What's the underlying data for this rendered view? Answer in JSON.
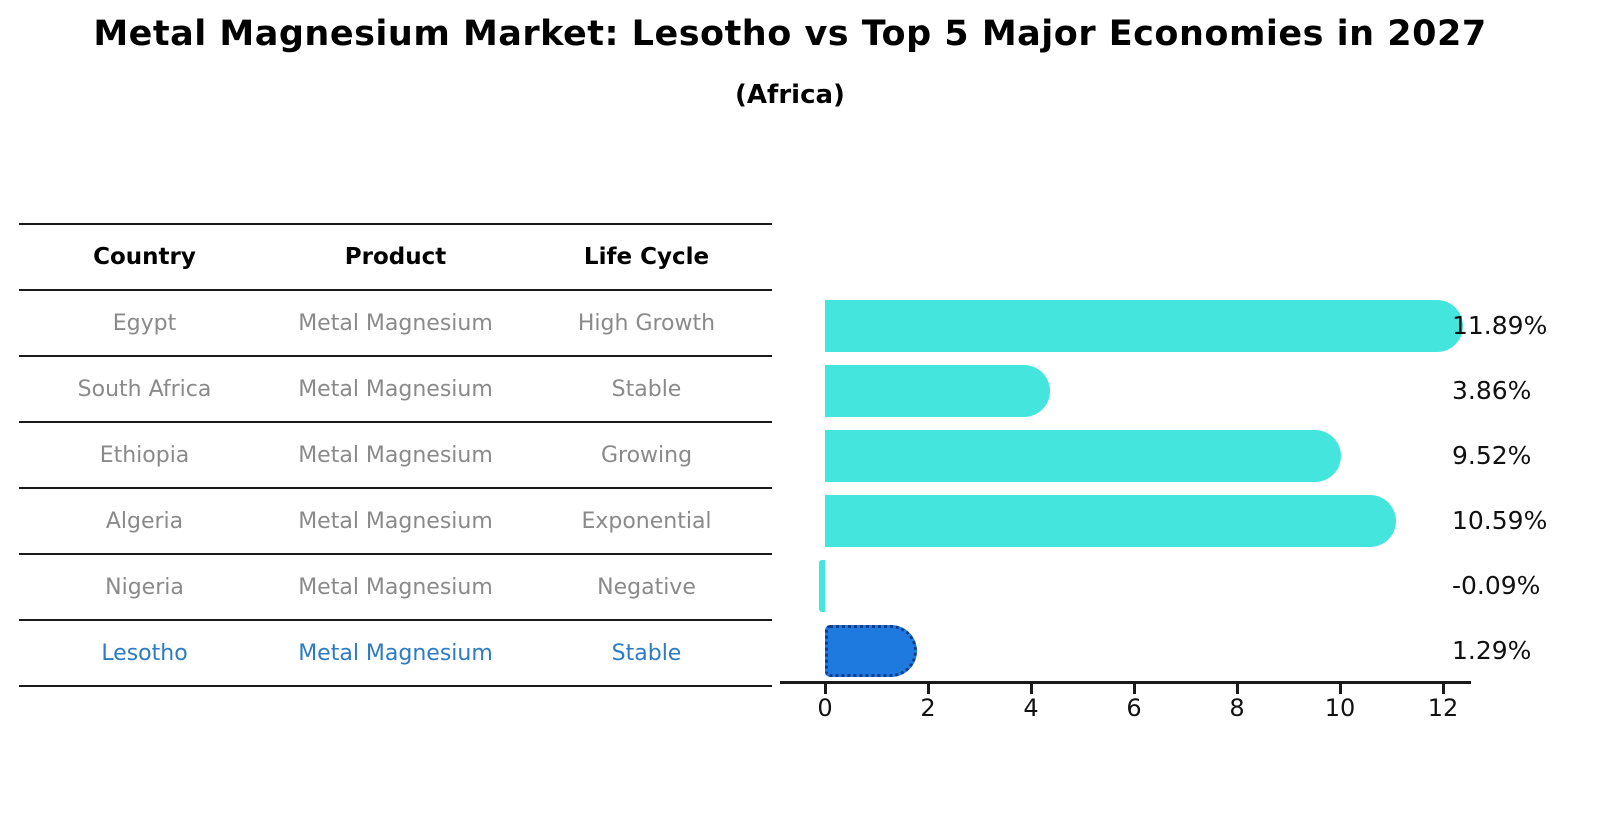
{
  "title": "Metal Magnesium Market: Lesotho vs Top 5 Major Economies in 2027",
  "subtitle": "(Africa)",
  "colors": {
    "bar_default": "#44E5DD",
    "bar_highlight": "#1F7AE0",
    "bar_highlight_edge": "#123C8C",
    "highlight_text": "#2C7BC4",
    "table_text": "#8A8A8A",
    "axis": "#1A1A1A"
  },
  "table": {
    "headers": [
      "Country",
      "Product",
      "Life Cycle"
    ],
    "rows": [
      {
        "country": "Egypt",
        "product": "Metal Magnesium",
        "life_cycle": "High Growth",
        "highlight": false
      },
      {
        "country": "South Africa",
        "product": "Metal Magnesium",
        "life_cycle": "Stable",
        "highlight": false
      },
      {
        "country": "Ethiopia",
        "product": "Metal Magnesium",
        "life_cycle": "Growing",
        "highlight": false
      },
      {
        "country": "Algeria",
        "product": "Metal Magnesium",
        "life_cycle": "Exponential",
        "highlight": false
      },
      {
        "country": "Nigeria",
        "product": "Metal Magnesium",
        "life_cycle": "Negative",
        "highlight": false
      },
      {
        "country": "Lesotho",
        "product": "Metal Magnesium",
        "life_cycle": "Stable",
        "highlight": true
      }
    ]
  },
  "chart_data": {
    "type": "bar",
    "orientation": "horizontal",
    "title": "Metal Magnesium Market: Lesotho vs Top 5 Major Economies in 2027 (Africa)",
    "xlabel": "",
    "ylabel": "",
    "categories": [
      "Egypt",
      "South Africa",
      "Ethiopia",
      "Algeria",
      "Nigeria",
      "Lesotho"
    ],
    "values": [
      11.89,
      3.86,
      9.52,
      10.59,
      -0.09,
      1.29
    ],
    "value_labels": [
      "11.89%",
      "3.86%",
      "9.52%",
      "10.59%",
      "-0.09%",
      "1.29%"
    ],
    "highlight_index": 5,
    "xticks": [
      0,
      2,
      4,
      6,
      8,
      10,
      12
    ],
    "xlim": [
      -0.9,
      12.5
    ],
    "grid": false,
    "legend": "none"
  }
}
